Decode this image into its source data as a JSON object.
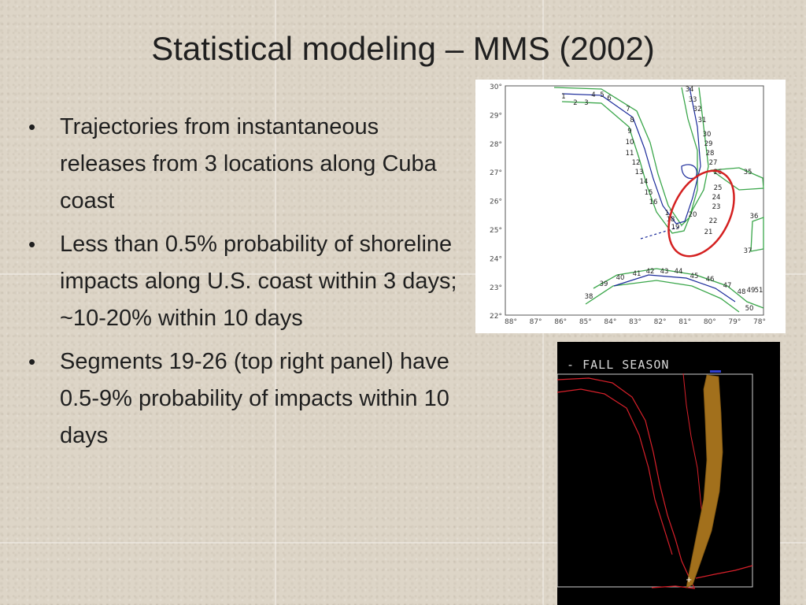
{
  "title": "Statistical modeling – MMS (2002)",
  "bullets": [
    "Trajectories from instantaneous releases from 3 locations along Cuba coast",
    "Less than 0.5% probability of shoreline impacts along U.S. coast within 3 days; ~10-20% within 10 days",
    "Segments 19-26 (top right panel) have 0.5-9% probability of impacts within 10 days"
  ],
  "bullet_symbol": "•",
  "map": {
    "lat_labels": [
      "30°",
      "29°",
      "28°",
      "27°",
      "26°",
      "25°",
      "24°",
      "23°",
      "22°"
    ],
    "lon_labels": [
      "88°",
      "87°",
      "86°",
      "85°",
      "84°",
      "83°",
      "82°",
      "81°",
      "80°",
      "79°",
      "78°"
    ],
    "segment_labels": [
      "1",
      "2",
      "3",
      "4",
      "5",
      "6",
      "7",
      "8",
      "9",
      "10",
      "11",
      "12",
      "13",
      "14",
      "15",
      "16",
      "17",
      "18",
      "19",
      "20",
      "21",
      "22",
      "23",
      "24",
      "25",
      "26",
      "27",
      "28",
      "29",
      "30",
      "31",
      "32",
      "33",
      "34",
      "35",
      "36",
      "37",
      "38",
      "39",
      "40",
      "41",
      "42",
      "43",
      "44",
      "45",
      "46",
      "47",
      "48",
      "49",
      "50",
      "51"
    ],
    "highlight_color": "#d42020",
    "buffer_color": "#3aa64a",
    "coast_color": "#1a2a9a"
  },
  "trajectory": {
    "season_label": "N - FALL SEASON",
    "coast_color": "#d8202a",
    "track_color": "#a2701c"
  }
}
